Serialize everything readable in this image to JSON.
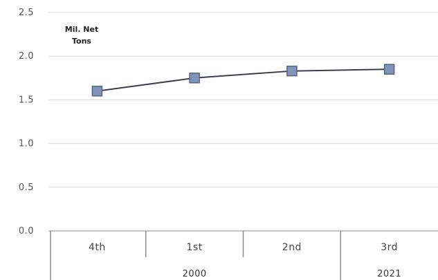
{
  "chart_data": {
    "type": "line",
    "unit_label": [
      "Mil. Net",
      "Tons"
    ],
    "categories": [
      "4th",
      "1st",
      "2nd",
      "3rd"
    ],
    "category_groups": [
      {
        "label": "2000",
        "span": [
          0,
          2
        ]
      },
      {
        "label": "2021",
        "span": [
          3,
          3
        ]
      }
    ],
    "series": [
      {
        "values": [
          1.6,
          1.75,
          1.83,
          1.85
        ]
      }
    ],
    "yticks": [
      "0.0",
      "0.5",
      "1.0",
      "1.5",
      "2.0",
      "2.5"
    ],
    "ylim": [
      0,
      2.5
    ],
    "grid": true,
    "colors": {
      "line": "#3a3f4a",
      "marker_fill": "#7f94b8",
      "marker_stroke": "#55657f",
      "grid": "#d9d9d9",
      "axis": "#8c8c8c"
    }
  }
}
